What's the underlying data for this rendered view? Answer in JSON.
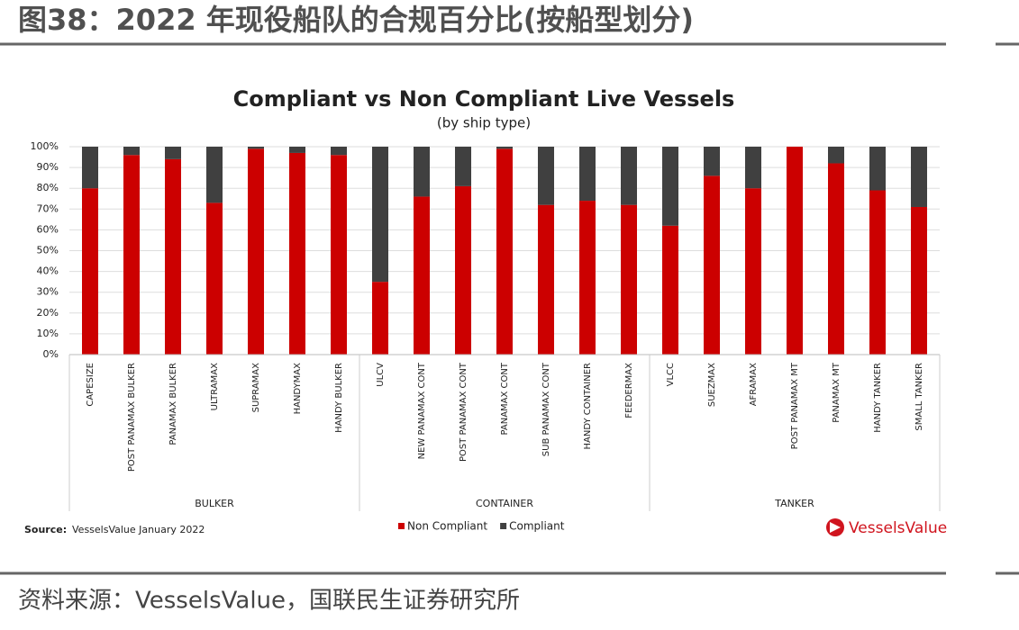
{
  "header": {
    "title": "图38：2022 年现役船队的合规百分比(按船型划分)"
  },
  "chart_data": {
    "type": "stacked_bar",
    "title": "Compliant vs Non Compliant Live Vessels",
    "subtitle": "(by ship type)",
    "groups": [
      {
        "name": "BULKER",
        "categories": [
          "CAPESIZE",
          "POST PANAMAX BULKER",
          "PANAMAX BULKER",
          "ULTRAMAX",
          "SUPRAMAX",
          "HANDYMAX",
          "HANDY BULKER"
        ]
      },
      {
        "name": "CONTAINER",
        "categories": [
          "ULCV",
          "NEW PANAMAX CONT",
          "POST PANAMAX CONT",
          "PANAMAX CONT",
          "SUB PANAMAX CONT",
          "HANDY CONTAINER",
          "FEEDERMAX"
        ]
      },
      {
        "name": "TANKER",
        "categories": [
          "VLCC",
          "SUEZMAX",
          "AFRAMAX",
          "POST PANAMAX MT",
          "PANAMAX MT",
          "HANDY TANKER",
          "SMALL TANKER"
        ]
      }
    ],
    "series": [
      {
        "name": "Non Compliant",
        "color": "#cc0000",
        "values": [
          80,
          96,
          94,
          73,
          99,
          97,
          96,
          35,
          76,
          81,
          99,
          72,
          74,
          72,
          62,
          86,
          80,
          100,
          92,
          79,
          71
        ]
      },
      {
        "name": "Compliant",
        "color": "#404040",
        "values": [
          20,
          4,
          6,
          27,
          1,
          3,
          4,
          65,
          24,
          19,
          1,
          28,
          26,
          28,
          38,
          14,
          20,
          0,
          8,
          21,
          29
        ]
      }
    ],
    "ylim": [
      0,
      100
    ],
    "yticks": [
      {
        "value": 0,
        "label": "0%"
      },
      {
        "value": 10,
        "label": "10%"
      },
      {
        "value": 20,
        "label": "20%"
      },
      {
        "value": 30,
        "label": "30%"
      },
      {
        "value": 40,
        "label": "40%"
      },
      {
        "value": 50,
        "label": "50%"
      },
      {
        "value": 60,
        "label": "60%"
      },
      {
        "value": 70,
        "label": "70%"
      },
      {
        "value": 80,
        "label": "80%"
      },
      {
        "value": 90,
        "label": "90%"
      },
      {
        "value": 100,
        "label": "100%"
      }
    ],
    "grid": true,
    "source_label": "Source:",
    "source_text": "VesselsValue January 2022",
    "logo": "VesselsValue"
  },
  "footer": {
    "source": "资料来源：VesselsValue，国联民生证券研究所"
  }
}
